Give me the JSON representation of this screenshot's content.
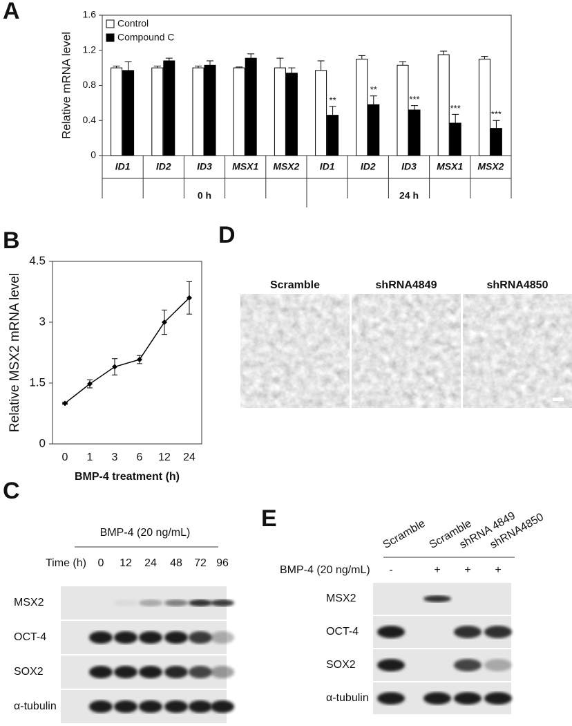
{
  "chart_data": [
    {
      "type": "bar",
      "y_label": "Relative mRNA level",
      "categories": [
        "ID1",
        "ID2",
        "ID3",
        "MSX1",
        "MSX2",
        "ID1",
        "ID2",
        "ID3",
        "MSX1",
        "MSX2"
      ],
      "groups": [
        "0 h",
        "24 h"
      ],
      "series": [
        {
          "name": "Control",
          "color": "#ffffff",
          "values": [
            1.0,
            1.0,
            1.0,
            1.0,
            1.0,
            0.97,
            1.1,
            1.03,
            1.15,
            1.1
          ],
          "errors": [
            0.02,
            0.02,
            0.02,
            0.01,
            0.11,
            0.11,
            0.04,
            0.04,
            0.04,
            0.03
          ]
        },
        {
          "name": "Compound C",
          "color": "#000000",
          "values": [
            0.97,
            1.08,
            1.03,
            1.11,
            0.94,
            0.46,
            0.58,
            0.52,
            0.37,
            0.31
          ],
          "errors": [
            0.1,
            0.03,
            0.05,
            0.05,
            0.06,
            0.1,
            0.1,
            0.05,
            0.1,
            0.09
          ]
        }
      ],
      "annotations": [
        null,
        null,
        null,
        null,
        null,
        "**",
        "**",
        "***",
        "***",
        "***"
      ],
      "ylim": [
        0,
        1.6
      ],
      "yticks": [
        0,
        0.4,
        0.8,
        1.2,
        1.6
      ],
      "legend": "upper left",
      "grid": false
    },
    {
      "type": "line",
      "y_label": "Relative MSX2 mRNA level",
      "x_label": "BMP-4 treatment (h)",
      "categories": [
        "0",
        "1",
        "3",
        "6",
        "12",
        "24"
      ],
      "values": [
        1.0,
        1.48,
        1.9,
        2.08,
        3.0,
        3.6
      ],
      "errors": [
        0.02,
        0.1,
        0.2,
        0.1,
        0.3,
        0.4
      ],
      "color": "#000000",
      "ylim": [
        0,
        4.5
      ],
      "yticks": [
        0,
        1.5,
        3,
        4.5
      ],
      "grid": false
    }
  ],
  "panel_labels": [
    "A",
    "B",
    "C",
    "D",
    "E"
  ],
  "panel_c": {
    "treatment": "BMP-4 (20 ng/mL)",
    "time_label": "Time (h)",
    "times": [
      "0",
      "12",
      "24",
      "48",
      "72",
      "96"
    ],
    "rows": [
      "MSX2",
      "OCT-4",
      "SOX2",
      "α-tubulin"
    ]
  },
  "panel_d": {
    "images": [
      "Scramble",
      "shRNA4849",
      "shRNA4850"
    ]
  },
  "panel_e": {
    "lanes": [
      "Scramble",
      "Scramble",
      "shRNA 4849",
      "shRNA4850"
    ],
    "treatment": "BMP-4 (20 ng/mL)",
    "signs": [
      "-",
      "+",
      "+",
      "+"
    ],
    "rows": [
      "MSX2",
      "OCT-4",
      "SOX2",
      "α-tubulin"
    ]
  }
}
